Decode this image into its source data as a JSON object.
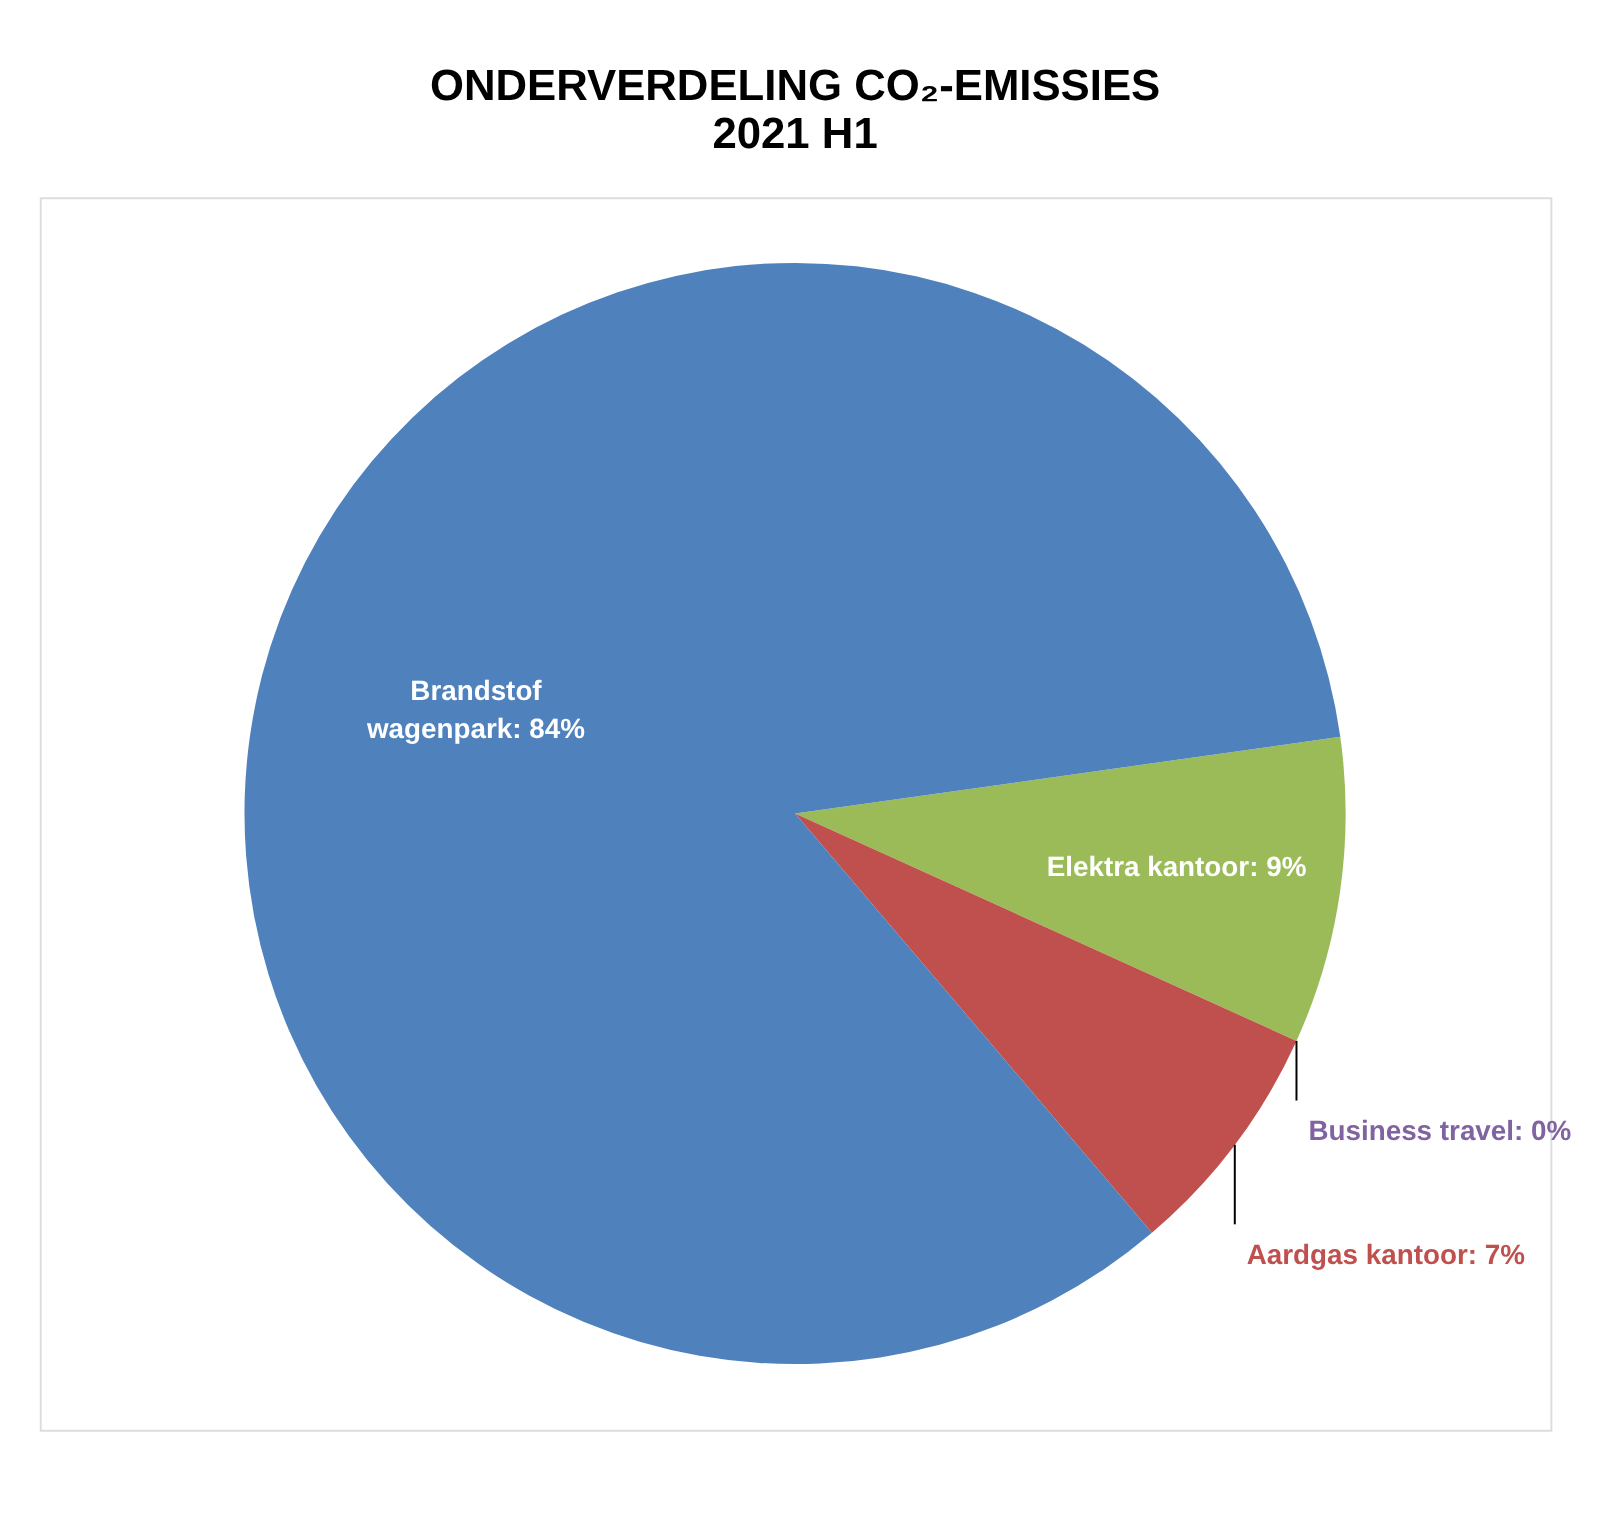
{
  "chart_data": {
    "type": "pie",
    "title": [
      "ONDERVERDELING CO₂-EMISSIES",
      "2021 H1"
    ],
    "categories": [
      "Elektra kantoor",
      "Business travel",
      "Aardgas kantoor",
      "Brandstof wagenpark"
    ],
    "values": [
      9,
      0,
      7,
      84
    ],
    "value_labels": [
      "9%",
      "0%",
      "7%",
      "84%"
    ],
    "colors": [
      "#9bbb59",
      "#8064a2",
      "#c0504d",
      "#4f81bd"
    ]
  }
}
